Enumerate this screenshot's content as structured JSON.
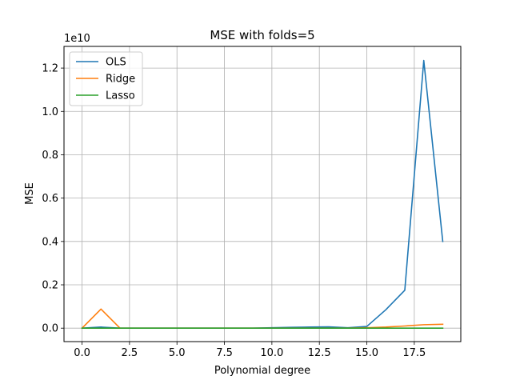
{
  "chart_data": {
    "type": "line",
    "title": "MSE with folds=5",
    "xlabel": "Polynomial degree",
    "ylabel": "MSE",
    "y_scale_label": "1e10",
    "xlim": [
      -0.95,
      19.95
    ],
    "ylim": [
      -0.62,
      13.0
    ],
    "x_ticks": [
      0.0,
      2.5,
      5.0,
      7.5,
      10.0,
      12.5,
      15.0,
      17.5
    ],
    "x_tick_labels": [
      "0.0",
      "2.5",
      "5.0",
      "7.5",
      "10.0",
      "12.5",
      "15.0",
      "17.5"
    ],
    "y_ticks": [
      0.0,
      2.0,
      4.0,
      6.0,
      8.0,
      10.0,
      12.0
    ],
    "y_tick_labels": [
      "0.0",
      "0.2",
      "0.4",
      "0.6",
      "0.8",
      "1.0",
      "1.2"
    ],
    "grid": true,
    "legend_position": "top-left",
    "x": [
      0,
      1,
      2,
      3,
      4,
      5,
      6,
      7,
      8,
      9,
      10,
      11,
      12,
      13,
      14,
      15,
      16,
      17,
      18,
      19
    ],
    "series": [
      {
        "name": "OLS",
        "color": "#1f77b4",
        "values": [
          0.0,
          0.05,
          0.0,
          0.0,
          0.0,
          0.0,
          0.0,
          0.0,
          0.0,
          0.0,
          0.02,
          0.04,
          0.05,
          0.06,
          0.02,
          0.08,
          0.85,
          1.75,
          12.35,
          4.0
        ]
      },
      {
        "name": "Ridge",
        "color": "#ff7f0e",
        "values": [
          0.0,
          0.88,
          0.0,
          0.0,
          0.0,
          0.0,
          0.0,
          0.0,
          0.0,
          0.0,
          0.0,
          0.0,
          0.0,
          0.0,
          0.0,
          0.02,
          0.05,
          0.1,
          0.16,
          0.18
        ]
      },
      {
        "name": "Lasso",
        "color": "#2ca02c",
        "values": [
          0.0,
          0.0,
          0.0,
          0.0,
          0.0,
          0.0,
          0.0,
          0.0,
          0.0,
          0.0,
          0.0,
          0.0,
          0.0,
          0.0,
          0.0,
          0.0,
          0.0,
          0.0,
          0.0,
          0.0
        ]
      }
    ]
  }
}
